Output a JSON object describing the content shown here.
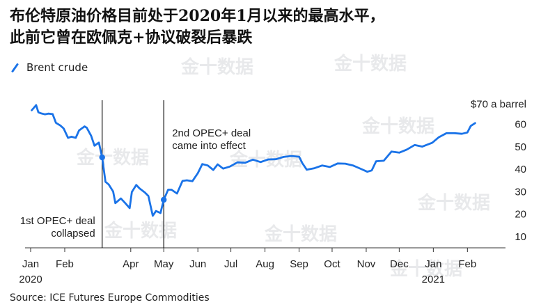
{
  "title_line1": "布伦特原油价格目前处于2020年1月以来的最高水平，",
  "title_line2": "此前它曾在欧佩克+协议破裂后暴跌",
  "source": "Source: ICE Futures Europe Commodities",
  "watermark": "金十数据",
  "colors": {
    "series": "#1a73e8",
    "event_line": "#111111",
    "text": "#222222"
  },
  "chart_data": {
    "type": "line",
    "ylabel": "$70 a barrel",
    "ylim": [
      5,
      72
    ],
    "yticks": [
      10,
      20,
      30,
      40,
      50,
      60
    ],
    "xlim": [
      "2020-01-01",
      "2021-02-28"
    ],
    "xticks": [
      {
        "date": "2020-01-01",
        "label": "Jan"
      },
      {
        "date": "2020-02-01",
        "label": "Feb"
      },
      {
        "date": "2020-04-01",
        "label": "Apr"
      },
      {
        "date": "2020-05-01",
        "label": "May"
      },
      {
        "date": "2020-06-01",
        "label": "Jun"
      },
      {
        "date": "2020-07-01",
        "label": "Jul"
      },
      {
        "date": "2020-08-01",
        "label": "Aug"
      },
      {
        "date": "2020-09-01",
        "label": "Sep"
      },
      {
        "date": "2020-10-01",
        "label": "Oct"
      },
      {
        "date": "2020-11-01",
        "label": "Nov"
      },
      {
        "date": "2020-12-01",
        "label": "Dec"
      },
      {
        "date": "2021-01-01",
        "label": "Jan"
      },
      {
        "date": "2021-02-01",
        "label": "Feb"
      }
    ],
    "year_labels": [
      {
        "date": "2020-01-01",
        "label": "2020"
      },
      {
        "date": "2021-01-01",
        "label": "2021"
      }
    ],
    "series": [
      {
        "name": "Brent crude",
        "points": [
          [
            "2020-01-02",
            66.3
          ],
          [
            "2020-01-06",
            68.6
          ],
          [
            "2020-01-08",
            65.4
          ],
          [
            "2020-01-10",
            65.0
          ],
          [
            "2020-01-14",
            64.5
          ],
          [
            "2020-01-17",
            64.8
          ],
          [
            "2020-01-21",
            64.6
          ],
          [
            "2020-01-24",
            60.7
          ],
          [
            "2020-01-28",
            59.5
          ],
          [
            "2020-01-31",
            58.2
          ],
          [
            "2020-02-04",
            54.0
          ],
          [
            "2020-02-07",
            54.5
          ],
          [
            "2020-02-11",
            54.0
          ],
          [
            "2020-02-14",
            57.3
          ],
          [
            "2020-02-19",
            59.1
          ],
          [
            "2020-02-21",
            58.5
          ],
          [
            "2020-02-25",
            54.9
          ],
          [
            "2020-02-28",
            50.5
          ],
          [
            "2020-03-03",
            51.9
          ],
          [
            "2020-03-06",
            45.3
          ],
          [
            "2020-03-09",
            34.4
          ],
          [
            "2020-03-12",
            33.2
          ],
          [
            "2020-03-16",
            30.1
          ],
          [
            "2020-03-18",
            24.9
          ],
          [
            "2020-03-23",
            27.0
          ],
          [
            "2020-03-27",
            24.9
          ],
          [
            "2020-03-31",
            22.7
          ],
          [
            "2020-04-02",
            29.9
          ],
          [
            "2020-04-06",
            33.0
          ],
          [
            "2020-04-09",
            31.5
          ],
          [
            "2020-04-14",
            29.6
          ],
          [
            "2020-04-17",
            28.1
          ],
          [
            "2020-04-21",
            19.3
          ],
          [
            "2020-04-24",
            21.4
          ],
          [
            "2020-04-28",
            20.5
          ],
          [
            "2020-05-01",
            26.4
          ],
          [
            "2020-05-05",
            30.9
          ],
          [
            "2020-05-08",
            30.9
          ],
          [
            "2020-05-13",
            29.2
          ],
          [
            "2020-05-18",
            34.8
          ],
          [
            "2020-05-22",
            35.1
          ],
          [
            "2020-05-27",
            34.7
          ],
          [
            "2020-06-01",
            38.3
          ],
          [
            "2020-06-05",
            42.3
          ],
          [
            "2020-06-10",
            41.7
          ],
          [
            "2020-06-15",
            39.7
          ],
          [
            "2020-06-19",
            42.2
          ],
          [
            "2020-06-24",
            40.3
          ],
          [
            "2020-06-30",
            41.2
          ],
          [
            "2020-07-07",
            43.1
          ],
          [
            "2020-07-14",
            42.9
          ],
          [
            "2020-07-21",
            44.3
          ],
          [
            "2020-07-28",
            43.2
          ],
          [
            "2020-08-04",
            44.4
          ],
          [
            "2020-08-11",
            44.5
          ],
          [
            "2020-08-18",
            45.5
          ],
          [
            "2020-08-25",
            45.9
          ],
          [
            "2020-09-01",
            45.6
          ],
          [
            "2020-09-04",
            42.7
          ],
          [
            "2020-09-08",
            39.8
          ],
          [
            "2020-09-15",
            40.5
          ],
          [
            "2020-09-22",
            41.7
          ],
          [
            "2020-09-29",
            41.0
          ],
          [
            "2020-10-06",
            42.6
          ],
          [
            "2020-10-13",
            42.5
          ],
          [
            "2020-10-20",
            41.7
          ],
          [
            "2020-10-27",
            40.2
          ],
          [
            "2020-11-02",
            38.9
          ],
          [
            "2020-11-06",
            39.5
          ],
          [
            "2020-11-10",
            43.6
          ],
          [
            "2020-11-17",
            43.8
          ],
          [
            "2020-11-24",
            47.9
          ],
          [
            "2020-12-01",
            47.4
          ],
          [
            "2020-12-08",
            48.8
          ],
          [
            "2020-12-15",
            50.8
          ],
          [
            "2020-12-22",
            50.1
          ],
          [
            "2020-12-31",
            51.8
          ],
          [
            "2021-01-06",
            54.3
          ],
          [
            "2021-01-13",
            56.1
          ],
          [
            "2021-01-20",
            56.1
          ],
          [
            "2021-01-27",
            55.8
          ],
          [
            "2021-02-01",
            56.4
          ],
          [
            "2021-02-04",
            59.3
          ],
          [
            "2021-02-08",
            60.6
          ]
        ]
      }
    ],
    "events": [
      {
        "date": "2020-03-06",
        "value": 45.3,
        "label_lines": [
          "1st OPEC+ deal",
          "collapsed"
        ]
      },
      {
        "date": "2020-05-01",
        "value": 26.4,
        "label_lines": [
          "2nd OPEC+ deal",
          "came into effect"
        ]
      }
    ]
  }
}
